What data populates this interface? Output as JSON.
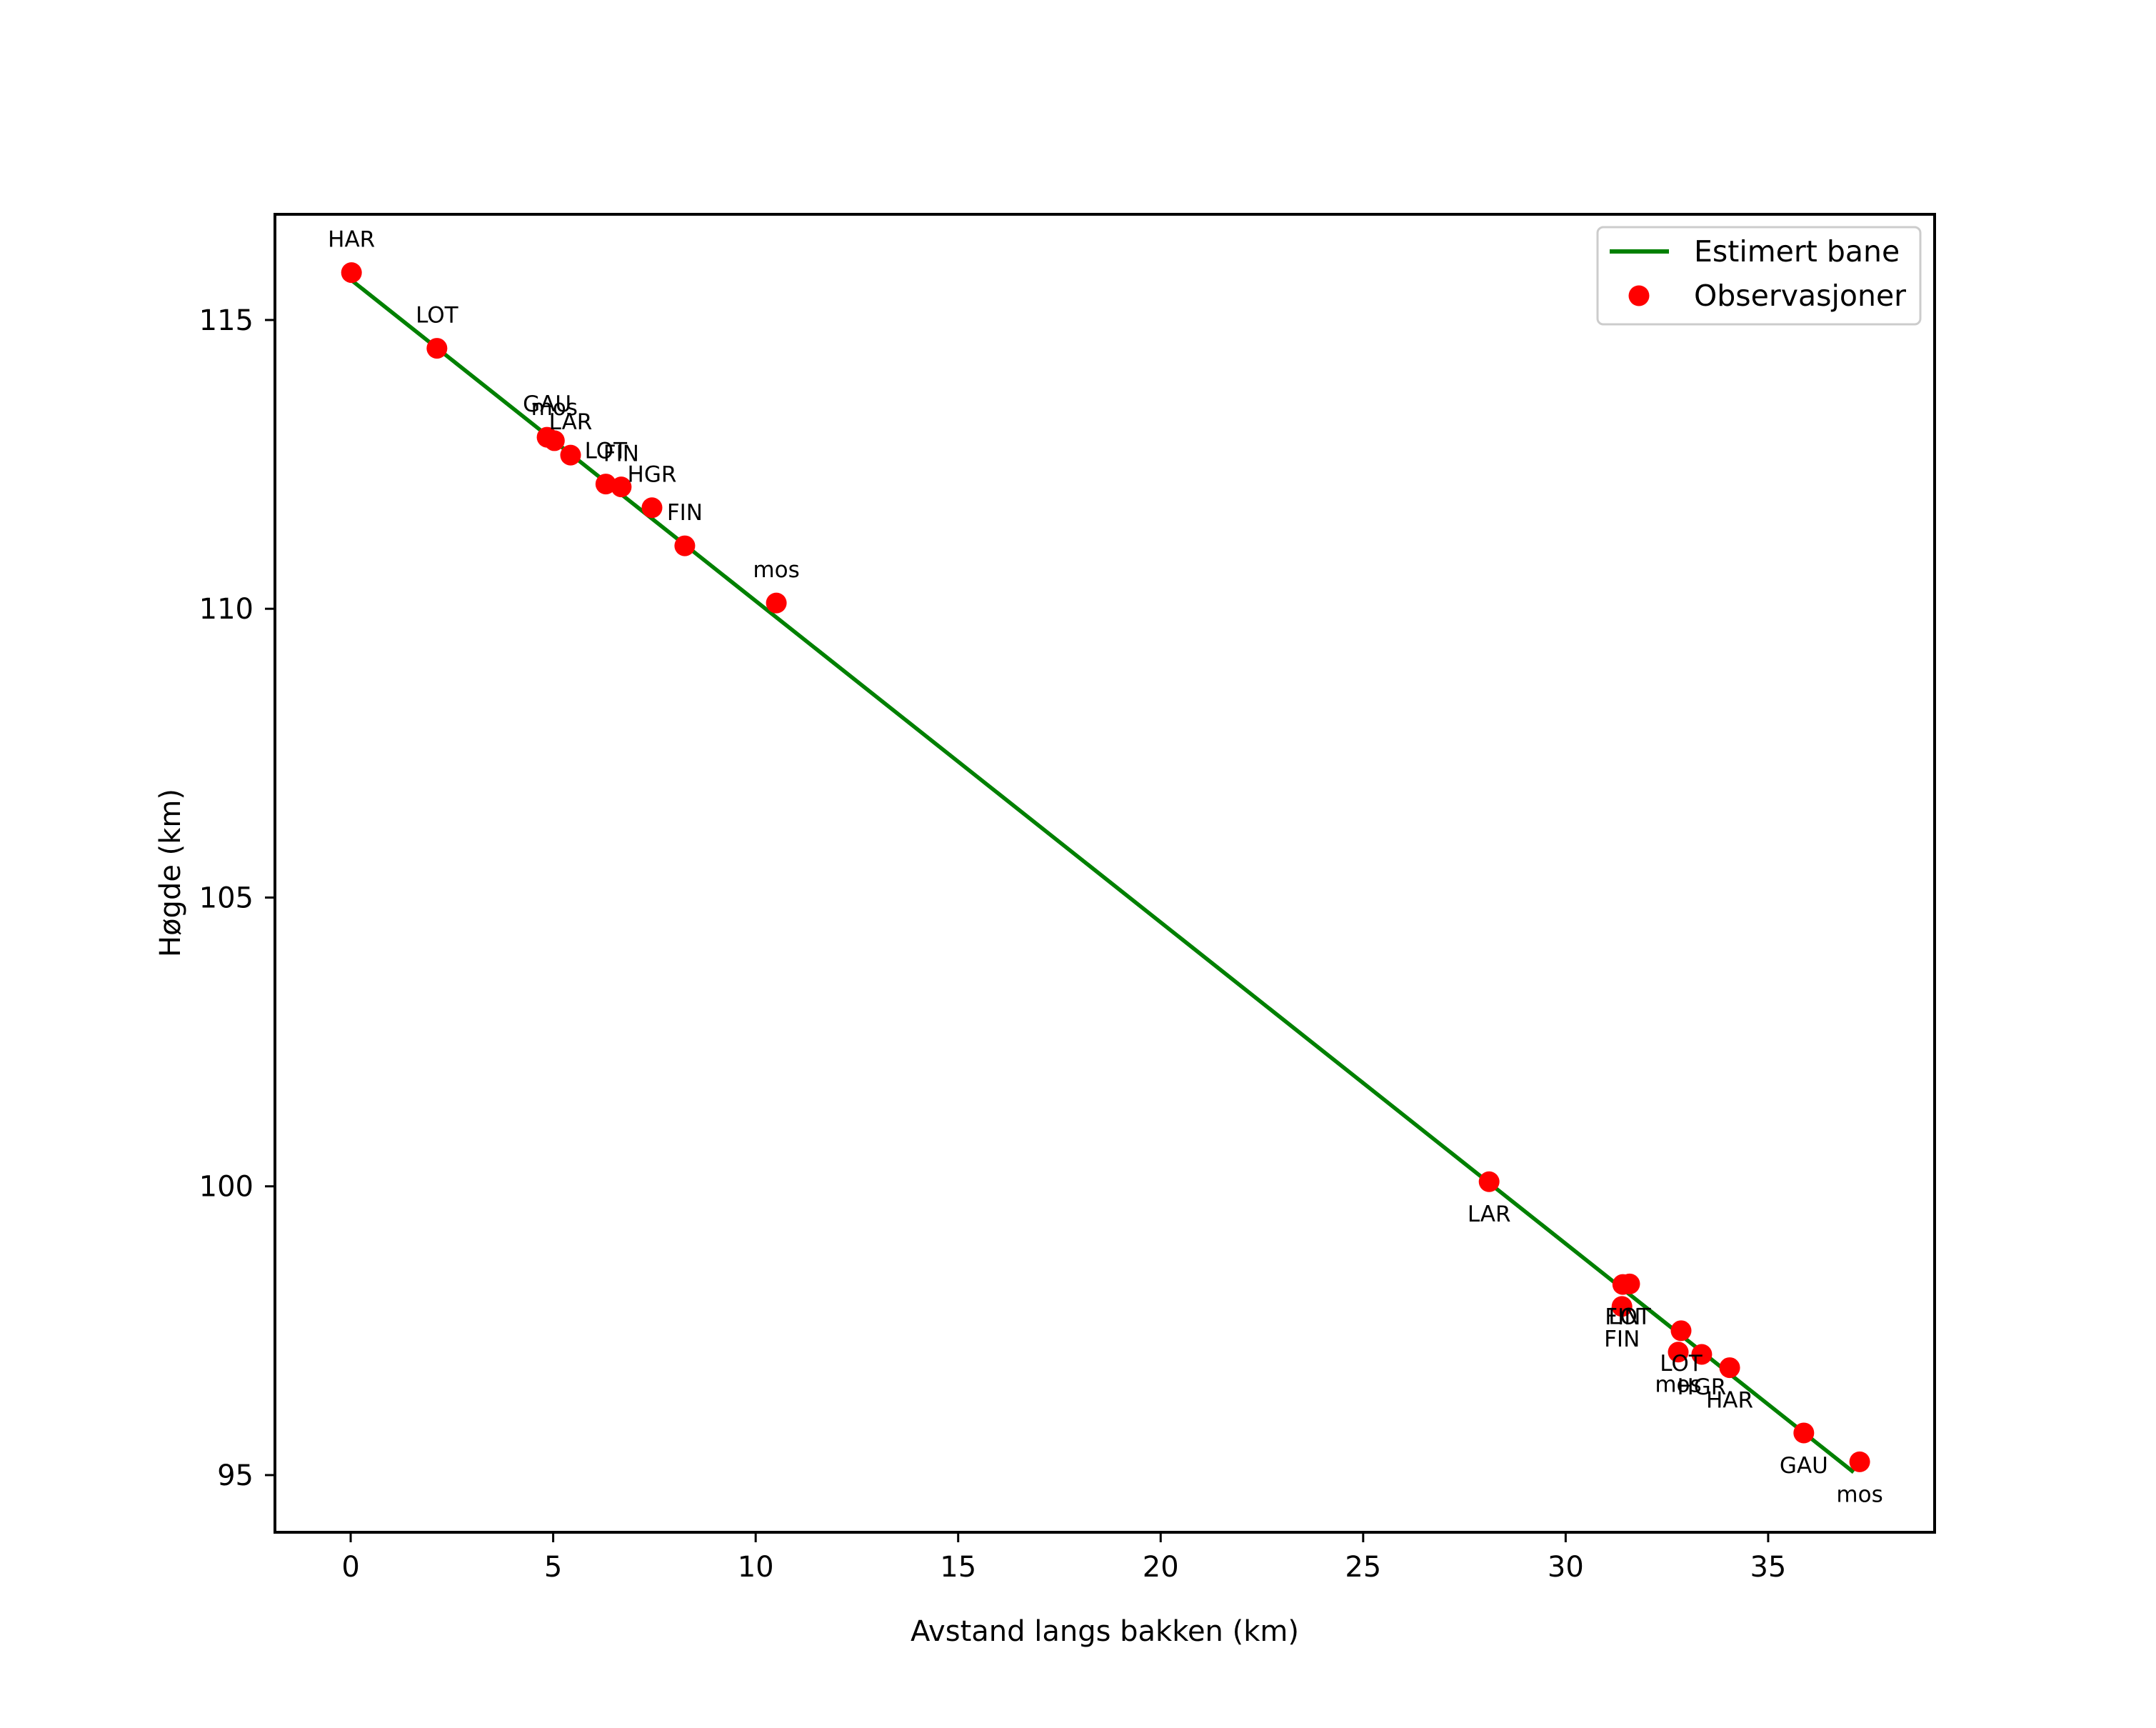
{
  "chart_data": {
    "type": "line",
    "title": "",
    "xlabel": "Avstand langs bakken (km)",
    "ylabel": "Høgde (km)",
    "xlim": [
      -1.87,
      39.11
    ],
    "ylim": [
      94.01,
      116.83
    ],
    "grid": false,
    "legend_position": "upper right",
    "x_ticks": [
      0,
      5,
      10,
      15,
      20,
      25,
      30,
      35
    ],
    "y_ticks": [
      95,
      100,
      105,
      110,
      115
    ],
    "series": [
      {
        "name": "Estimert bane",
        "kind": "line",
        "color": "#008000",
        "x": [
          0.0,
          37.11
        ],
        "y": [
          115.7,
          95.05
        ]
      },
      {
        "name": "Observasjoner",
        "kind": "scatter",
        "color": "#ff0000",
        "points": [
          {
            "x": 0.02,
            "y": 115.82,
            "label": "HAR",
            "label_pos": "above"
          },
          {
            "x": 2.13,
            "y": 114.51,
            "label": "LOT",
            "label_pos": "above"
          },
          {
            "x": 4.85,
            "y": 112.97,
            "label": "GAU",
            "label_pos": "above"
          },
          {
            "x": 5.03,
            "y": 112.91,
            "label": "mos",
            "label_pos": "above"
          },
          {
            "x": 5.43,
            "y": 112.66,
            "label": "LAR",
            "label_pos": "above"
          },
          {
            "x": 6.3,
            "y": 112.16,
            "label": "LOT",
            "label_pos": "above"
          },
          {
            "x": 6.68,
            "y": 112.11,
            "label": "FIN",
            "label_pos": "above"
          },
          {
            "x": 7.44,
            "y": 111.75,
            "label": "HGR",
            "label_pos": "above"
          },
          {
            "x": 8.25,
            "y": 111.09,
            "label": "FIN",
            "label_pos": "above"
          },
          {
            "x": 10.51,
            "y": 110.1,
            "label": "mos",
            "label_pos": "above"
          },
          {
            "x": 28.11,
            "y": 100.08,
            "label": "LAR",
            "label_pos": "below"
          },
          {
            "x": 31.41,
            "y": 98.3,
            "label": "FIN",
            "label_pos": "below"
          },
          {
            "x": 31.58,
            "y": 98.31,
            "label": "LOT",
            "label_pos": "below"
          },
          {
            "x": 31.39,
            "y": 97.92,
            "label": "FIN",
            "label_pos": "below"
          },
          {
            "x": 32.85,
            "y": 97.5,
            "label": "LOT",
            "label_pos": "below"
          },
          {
            "x": 32.78,
            "y": 97.13,
            "label": "mos",
            "label_pos": "below"
          },
          {
            "x": 33.36,
            "y": 97.09,
            "label": "HGR",
            "label_pos": "below"
          },
          {
            "x": 34.05,
            "y": 96.86,
            "label": "HAR",
            "label_pos": "below"
          },
          {
            "x": 35.88,
            "y": 95.73,
            "label": "GAU",
            "label_pos": "below"
          },
          {
            "x": 37.26,
            "y": 95.23,
            "label": "mos",
            "label_pos": "below"
          }
        ]
      }
    ]
  },
  "legend": {
    "items": [
      {
        "label": "Estimert bane",
        "marker": "line",
        "color": "#008000"
      },
      {
        "label": "Observasjoner",
        "marker": "dot",
        "color": "#ff0000"
      }
    ]
  }
}
